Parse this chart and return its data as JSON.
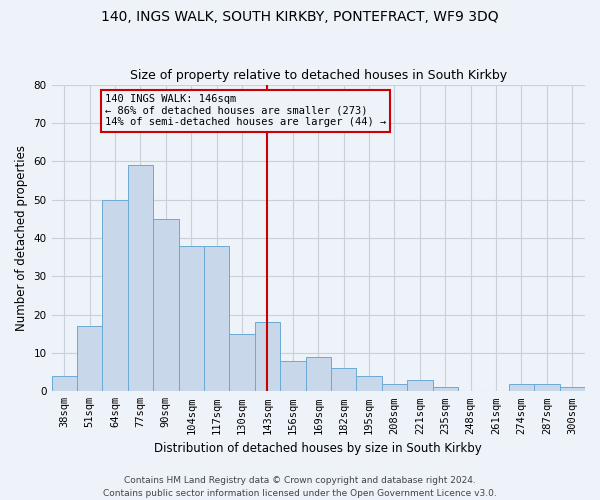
{
  "title": "140, INGS WALK, SOUTH KIRKBY, PONTEFRACT, WF9 3DQ",
  "subtitle": "Size of property relative to detached houses in South Kirkby",
  "xlabel": "Distribution of detached houses by size in South Kirkby",
  "ylabel": "Number of detached properties",
  "footer_line1": "Contains HM Land Registry data © Crown copyright and database right 2024.",
  "footer_line2": "Contains public sector information licensed under the Open Government Licence v3.0.",
  "categories": [
    "38sqm",
    "51sqm",
    "64sqm",
    "77sqm",
    "90sqm",
    "104sqm",
    "117sqm",
    "130sqm",
    "143sqm",
    "156sqm",
    "169sqm",
    "182sqm",
    "195sqm",
    "208sqm",
    "221sqm",
    "235sqm",
    "248sqm",
    "261sqm",
    "274sqm",
    "287sqm",
    "300sqm"
  ],
  "values": [
    4,
    17,
    50,
    59,
    45,
    38,
    38,
    15,
    18,
    8,
    9,
    6,
    4,
    2,
    3,
    1,
    0,
    0,
    2,
    2,
    1
  ],
  "bar_color": "#c8d8ea",
  "bar_edge_color": "#6aaad4",
  "grid_color": "#c8d0dc",
  "background_color": "#eef2f9",
  "vline_x": 8,
  "vline_color": "#cc0000",
  "annotation_text": "140 INGS WALK: 146sqm\n← 86% of detached houses are smaller (273)\n14% of semi-detached houses are larger (44) →",
  "annotation_box_color": "#cc0000",
  "ylim": [
    0,
    80
  ],
  "yticks": [
    0,
    10,
    20,
    30,
    40,
    50,
    60,
    70,
    80
  ],
  "title_fontsize": 10,
  "subtitle_fontsize": 9,
  "xlabel_fontsize": 8.5,
  "ylabel_fontsize": 8.5,
  "tick_fontsize": 7.5,
  "footer_fontsize": 6.5,
  "annot_fontsize": 7.5
}
